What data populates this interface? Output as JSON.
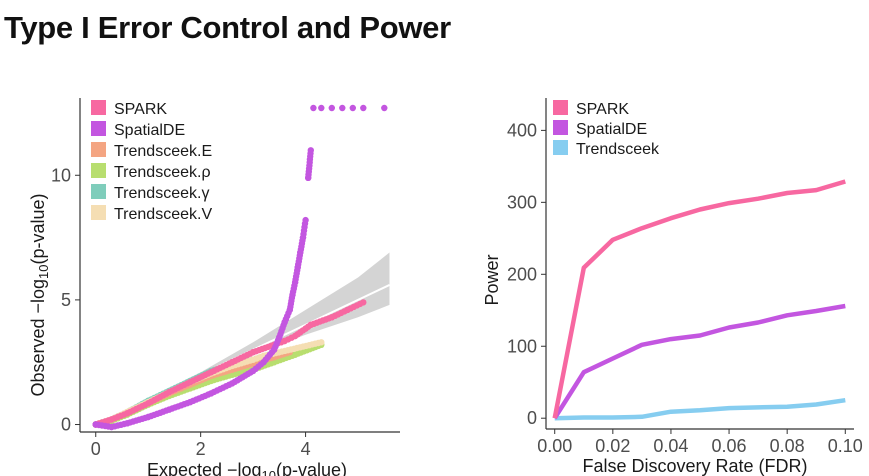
{
  "slide": {
    "title": "Type I Error Control and Power"
  },
  "chart_data": [
    {
      "type": "scatter",
      "title": "",
      "xlabel_prefix": "Expected −log",
      "xlabel_sub": "10",
      "xlabel_suffix": "(p-value)",
      "ylabel_prefix": "Observed −log",
      "ylabel_sub": "10",
      "ylabel_suffix": "(p-value)",
      "xlim": [
        -0.3,
        5.8
      ],
      "ylim": [
        -0.3,
        13.1
      ],
      "xticks": [
        0,
        2,
        4
      ],
      "yticks": [
        0,
        5,
        10
      ],
      "grid": false,
      "legend_position": "top-left",
      "reference_line": {
        "color": "#ffffff",
        "points": [
          [
            0,
            0
          ],
          [
            5.6,
            5.6
          ]
        ]
      },
      "confidence_band": {
        "color": "#d4d4d4",
        "upper": [
          [
            0,
            0
          ],
          [
            1,
            1.05
          ],
          [
            2,
            2.1
          ],
          [
            3,
            3.3
          ],
          [
            4,
            4.6
          ],
          [
            5,
            5.9
          ],
          [
            5.6,
            6.9
          ]
        ],
        "lower": [
          [
            0,
            0
          ],
          [
            1,
            0.95
          ],
          [
            2,
            1.9
          ],
          [
            3,
            2.8
          ],
          [
            4,
            3.6
          ],
          [
            5,
            4.3
          ],
          [
            5.6,
            4.8
          ]
        ]
      },
      "series": [
        {
          "name": "Trendsceek.γ",
          "color": "#7fcdbb",
          "points": [
            [
              0,
              0
            ],
            [
              0.3,
              0.2
            ],
            [
              0.6,
              0.5
            ],
            [
              1.0,
              0.95
            ],
            [
              1.4,
              1.35
            ],
            [
              1.8,
              1.75
            ],
            [
              2.2,
              2.15
            ],
            [
              2.6,
              2.4
            ],
            [
              3.0,
              2.6
            ],
            [
              3.3,
              2.8
            ]
          ]
        },
        {
          "name": "Trendsceek.ρ",
          "color": "#b8de6f",
          "points": [
            [
              0,
              0
            ],
            [
              0.3,
              0.15
            ],
            [
              0.6,
              0.4
            ],
            [
              1.0,
              0.8
            ],
            [
              1.4,
              1.15
            ],
            [
              1.8,
              1.45
            ],
            [
              2.2,
              1.75
            ],
            [
              2.6,
              2.0
            ],
            [
              3.0,
              2.2
            ],
            [
              3.4,
              2.5
            ],
            [
              3.8,
              2.8
            ],
            [
              4.3,
              3.2
            ]
          ]
        },
        {
          "name": "Trendsceek.E",
          "color": "#f4a582",
          "points": [
            [
              0,
              0
            ],
            [
              0.3,
              0.2
            ],
            [
              0.6,
              0.5
            ],
            [
              1.0,
              0.85
            ],
            [
              1.4,
              1.25
            ],
            [
              1.8,
              1.6
            ],
            [
              2.2,
              1.95
            ],
            [
              2.6,
              2.2
            ],
            [
              3.0,
              2.45
            ],
            [
              3.4,
              2.7
            ],
            [
              3.7,
              2.9
            ]
          ]
        },
        {
          "name": "Trendsceek.V",
          "color": "#f5deb3",
          "points": [
            [
              0,
              0
            ],
            [
              0.3,
              0.2
            ],
            [
              0.6,
              0.5
            ],
            [
              1.0,
              0.9
            ],
            [
              1.4,
              1.3
            ],
            [
              1.8,
              1.7
            ],
            [
              2.2,
              2.05
            ],
            [
              2.6,
              2.35
            ],
            [
              3.0,
              2.6
            ],
            [
              3.2,
              2.75
            ],
            [
              4.3,
              3.3
            ]
          ]
        },
        {
          "name": "SPARK",
          "color": "#f768a1",
          "points": [
            [
              0,
              0
            ],
            [
              0.3,
              0.2
            ],
            [
              0.6,
              0.45
            ],
            [
              1.0,
              0.85
            ],
            [
              1.4,
              1.3
            ],
            [
              1.8,
              1.7
            ],
            [
              2.2,
              2.1
            ],
            [
              2.6,
              2.5
            ],
            [
              3.0,
              2.9
            ],
            [
              3.4,
              3.2
            ],
            [
              3.6,
              3.35
            ],
            [
              3.8,
              3.55
            ],
            [
              4.0,
              3.85
            ],
            [
              4.1,
              4.0
            ],
            [
              4.5,
              4.3
            ],
            [
              4.8,
              4.6
            ],
            [
              5.1,
              4.9
            ]
          ]
        },
        {
          "name": "SpatialDE",
          "color": "#c356e0",
          "points": [
            [
              0,
              0
            ],
            [
              0.3,
              -0.1
            ],
            [
              0.6,
              0.05
            ],
            [
              1.0,
              0.3
            ],
            [
              1.4,
              0.6
            ],
            [
              1.8,
              0.9
            ],
            [
              2.2,
              1.25
            ],
            [
              2.6,
              1.65
            ],
            [
              3.0,
              2.15
            ],
            [
              3.2,
              2.5
            ],
            [
              3.4,
              3.0
            ],
            [
              3.5,
              3.5
            ],
            [
              3.6,
              4.1
            ],
            [
              3.7,
              4.6
            ],
            [
              3.75,
              5.2
            ],
            [
              3.8,
              5.7
            ],
            [
              3.85,
              6.3
            ],
            [
              3.9,
              6.9
            ],
            [
              3.95,
              7.5
            ],
            [
              4.0,
              8.2
            ],
            [
              4.05,
              9.9
            ],
            [
              4.1,
              11.0
            ],
            [
              4.15,
              12.7
            ],
            [
              4.3,
              12.7
            ],
            [
              4.5,
              12.7
            ],
            [
              4.7,
              12.7
            ],
            [
              4.9,
              12.7
            ],
            [
              5.1,
              12.7
            ],
            [
              5.5,
              12.7
            ]
          ]
        }
      ]
    },
    {
      "type": "line",
      "title": "",
      "xlabel": "False Discovery Rate (FDR)",
      "ylabel": "Power",
      "xlim": [
        -0.003,
        0.103
      ],
      "ylim": [
        -15,
        445
      ],
      "xticks": [
        0.0,
        0.02,
        0.04,
        0.06,
        0.08,
        0.1
      ],
      "xtick_labels": [
        "0.00",
        "0.02",
        "0.04",
        "0.06",
        "0.08",
        "0.10"
      ],
      "yticks": [
        0,
        100,
        200,
        300,
        400
      ],
      "grid": false,
      "legend_position": "top-left",
      "x": [
        0.0,
        0.01,
        0.02,
        0.03,
        0.04,
        0.05,
        0.06,
        0.07,
        0.08,
        0.09,
        0.1
      ],
      "series": [
        {
          "name": "SPARK",
          "color": "#f768a1",
          "values": [
            0,
            209,
            248,
            264,
            278,
            290,
            299,
            305,
            313,
            317,
            329
          ]
        },
        {
          "name": "SpatialDE",
          "color": "#c356e0",
          "values": [
            0,
            64,
            83,
            102,
            110,
            115,
            126,
            133,
            143,
            149,
            156
          ]
        },
        {
          "name": "Trendsceek",
          "color": "#86cdf0",
          "values": [
            0,
            1,
            1,
            2,
            9,
            11,
            14,
            15,
            16,
            19,
            25
          ]
        }
      ]
    }
  ]
}
